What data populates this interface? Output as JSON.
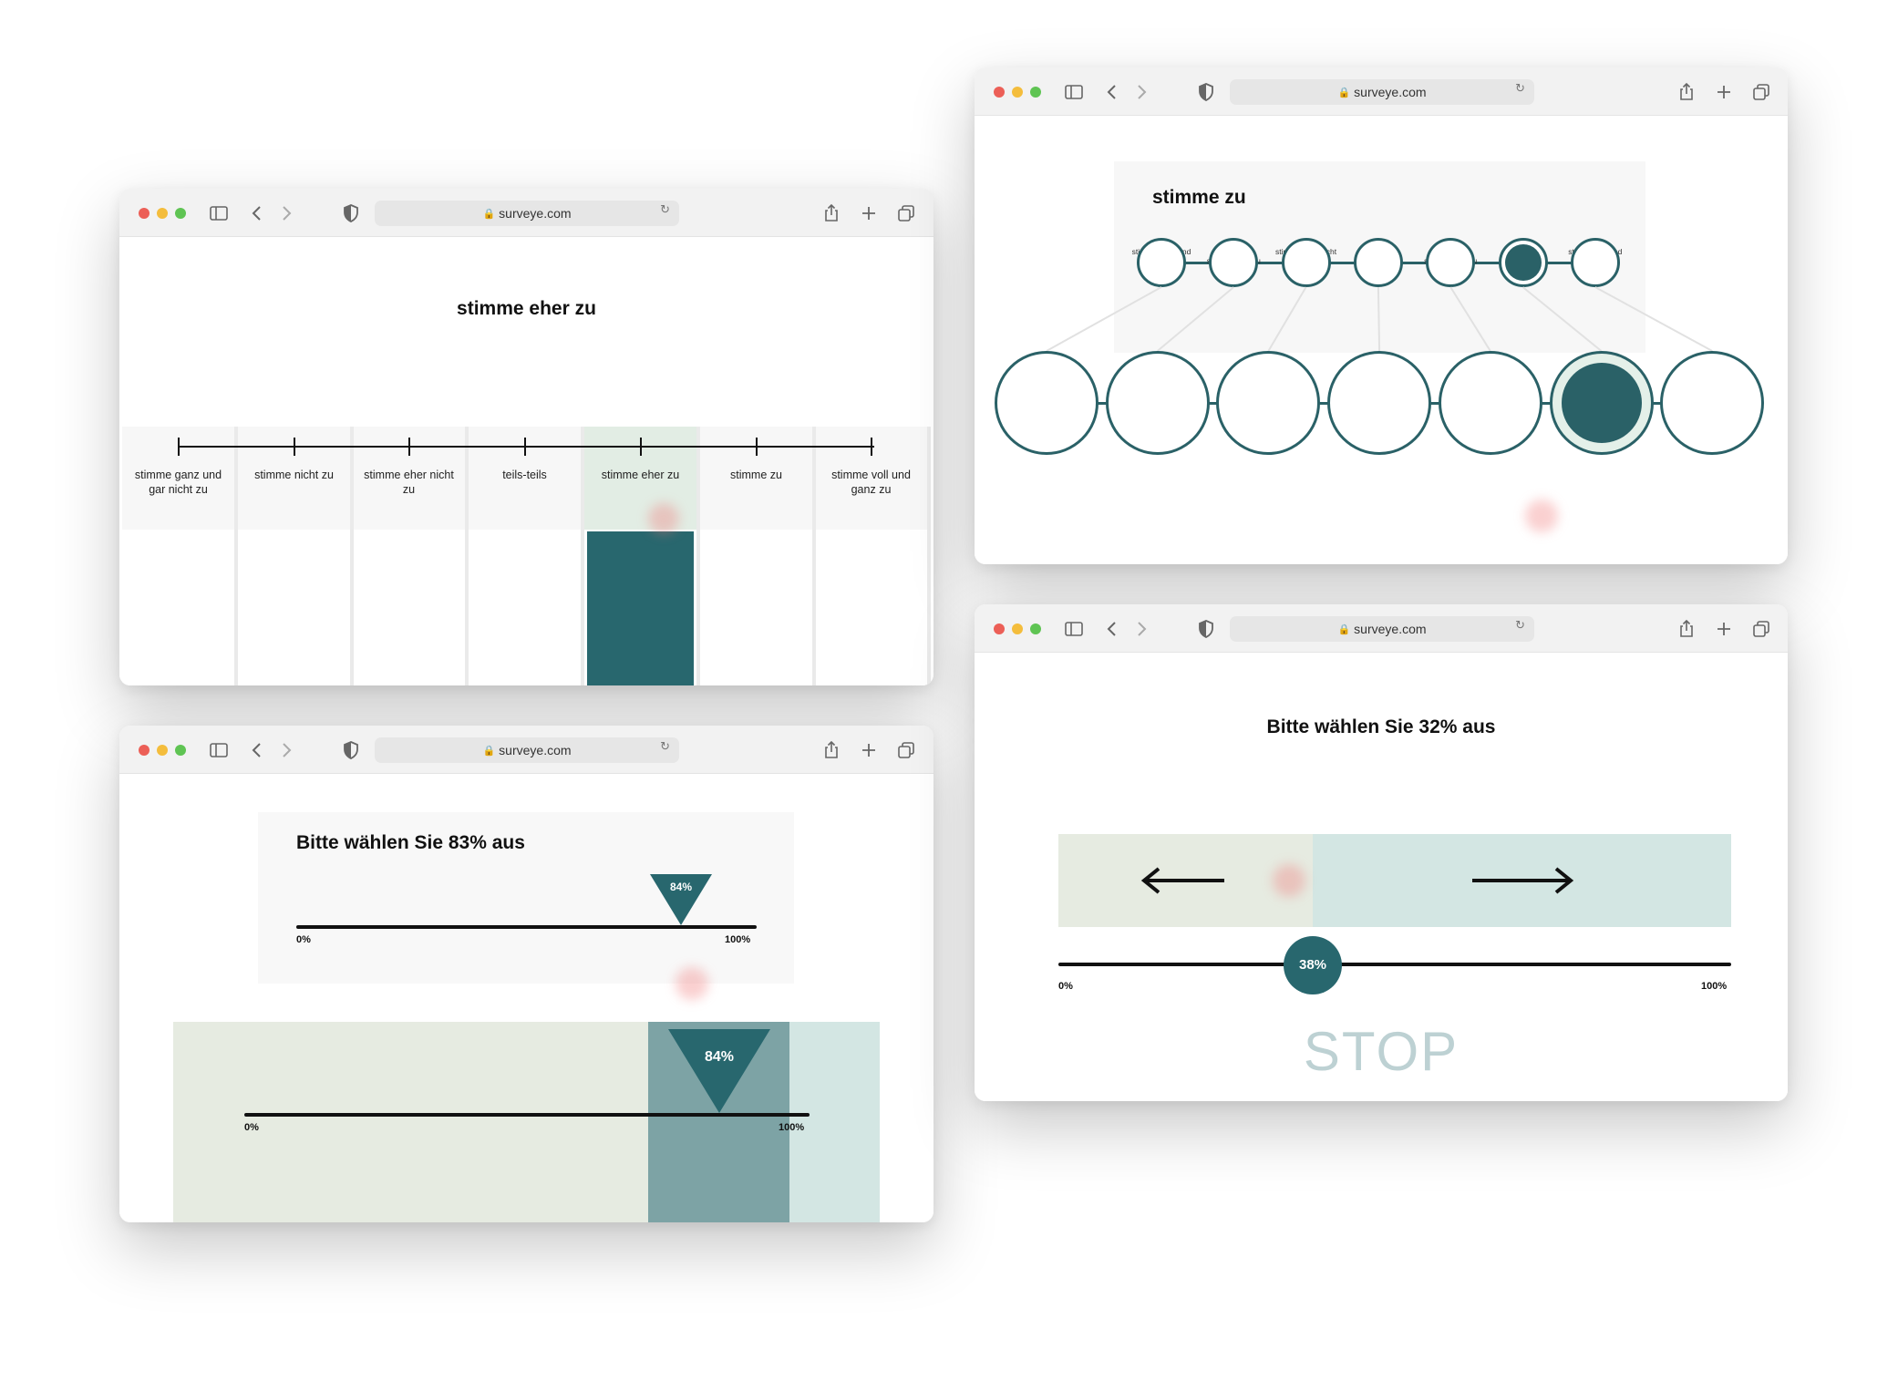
{
  "colors": {
    "accent": "#28676e",
    "selected_band": "#e2ede4",
    "left_zone": "#e6ebe1",
    "right_zone": "#d3e6e3",
    "stop_text": "#bdd1d3"
  },
  "browser": {
    "url": "surveye.com",
    "lock_icon": "lock-icon",
    "reload_icon": "reload-icon"
  },
  "likert_bar": {
    "title": "stimme eher zu",
    "options": [
      "stimme ganz und gar nicht zu",
      "stimme nicht zu",
      "stimme eher nicht zu",
      "teils-teils",
      "stimme eher zu",
      "stimme zu",
      "stimme voll und ganz zu"
    ],
    "selected_index": 4
  },
  "slider_83": {
    "title": "Bitte wählen Sie 83% aus",
    "value_label": "84%",
    "value": 0.84,
    "min_label": "0%",
    "max_label": "100%",
    "zoom_value_label": "84%",
    "zoom_min_label": "0%",
    "zoom_max_label": "100%"
  },
  "likert_circles": {
    "title": "stimme zu",
    "options": [
      "stimme ganz und gar nicht zu",
      "stimme nicht zu",
      "stimme eher nicht zu",
      "teils-teils",
      "stimme eher zu",
      "stimme zu",
      "stimme voll und ganz zu"
    ],
    "selected_index": 5
  },
  "slider_32": {
    "title": "Bitte wählen Sie 32% aus",
    "value_label": "38%",
    "value": 0.38,
    "min_label": "0%",
    "max_label": "100%",
    "stop_label": "STOP",
    "left_arrow_icon": "arrow-left-icon",
    "right_arrow_icon": "arrow-right-icon"
  }
}
